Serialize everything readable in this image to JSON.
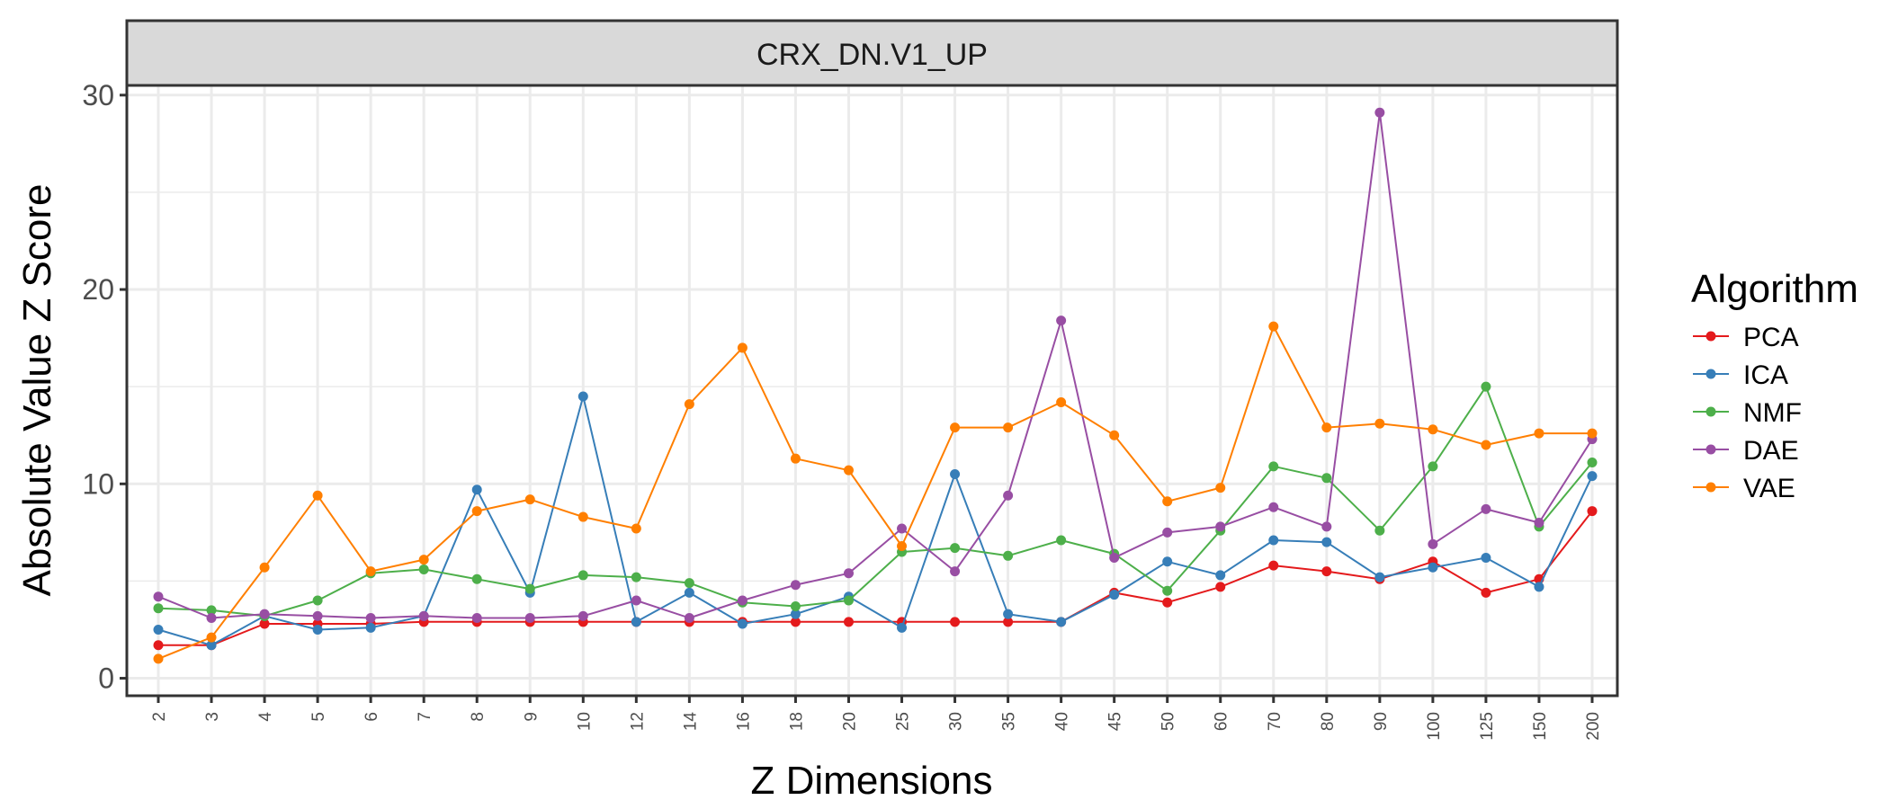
{
  "chart_data": {
    "type": "line",
    "panel_title": "CRX_DN.V1_UP",
    "xlabel": "Z Dimensions",
    "ylabel": "Absolute Value Z Score",
    "categories": [
      "2",
      "3",
      "4",
      "5",
      "6",
      "7",
      "8",
      "9",
      "10",
      "12",
      "14",
      "16",
      "18",
      "20",
      "25",
      "30",
      "35",
      "40",
      "45",
      "50",
      "60",
      "70",
      "80",
      "90",
      "100",
      "125",
      "150",
      "200"
    ],
    "ylim": [
      -0.9,
      30.5
    ],
    "yticks": [
      0,
      10,
      20,
      30
    ],
    "grid": true,
    "legend": {
      "title": "Algorithm",
      "position": "right"
    },
    "series": [
      {
        "name": "PCA",
        "color": "#E41A1C",
        "values": [
          1.7,
          1.7,
          2.8,
          2.8,
          2.8,
          2.9,
          2.9,
          2.9,
          2.9,
          2.9,
          2.9,
          2.9,
          2.9,
          2.9,
          2.9,
          2.9,
          2.9,
          2.9,
          4.4,
          3.9,
          4.7,
          5.8,
          5.5,
          5.1,
          6.0,
          4.4,
          5.1,
          8.6
        ]
      },
      {
        "name": "ICA",
        "color": "#377EB8",
        "values": [
          2.5,
          1.7,
          3.2,
          2.5,
          2.6,
          3.2,
          9.7,
          4.4,
          14.5,
          2.9,
          4.4,
          2.8,
          3.3,
          4.2,
          2.6,
          10.5,
          3.3,
          2.9,
          4.3,
          6.0,
          5.3,
          7.1,
          7.0,
          5.2,
          5.7,
          6.2,
          4.7,
          10.4
        ]
      },
      {
        "name": "NMF",
        "color": "#4DAF4A",
        "values": [
          3.6,
          3.5,
          3.2,
          4.0,
          5.4,
          5.6,
          5.1,
          4.6,
          5.3,
          5.2,
          4.9,
          3.9,
          3.7,
          4.0,
          6.5,
          6.7,
          6.3,
          7.1,
          6.4,
          4.5,
          7.6,
          10.9,
          10.3,
          7.6,
          10.9,
          15.0,
          7.8,
          11.1
        ]
      },
      {
        "name": "DAE",
        "color": "#984EA3",
        "values": [
          4.2,
          3.1,
          3.3,
          3.2,
          3.1,
          3.2,
          3.1,
          3.1,
          3.2,
          4.0,
          3.1,
          4.0,
          4.8,
          5.4,
          7.7,
          5.5,
          9.4,
          18.4,
          6.2,
          7.5,
          7.8,
          8.8,
          7.8,
          29.1,
          6.9,
          8.7,
          8.0,
          12.3
        ]
      },
      {
        "name": "VAE",
        "color": "#FF7F00",
        "values": [
          1.0,
          2.1,
          5.7,
          9.4,
          5.5,
          6.1,
          8.6,
          9.2,
          8.3,
          7.7,
          14.1,
          17.0,
          11.3,
          10.7,
          6.8,
          12.9,
          12.9,
          14.2,
          12.5,
          9.1,
          9.8,
          18.1,
          12.9,
          13.1,
          12.8,
          12.0,
          12.6,
          12.6
        ]
      }
    ]
  }
}
